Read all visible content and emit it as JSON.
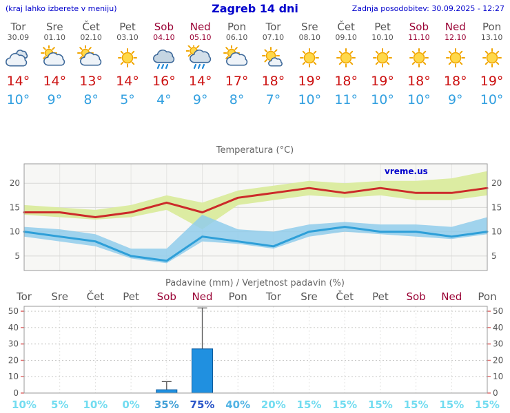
{
  "header": {
    "note": "(kraj lahko izberete v meniju)",
    "title": "Zagreb 14 dni",
    "updated": "Zadnja posodobitev: 30.09.2025 - 12:27"
  },
  "colors": {
    "header_text": "#0000cc",
    "day_normal": "#555555",
    "day_weekend": "#990033",
    "temp_high": "#cc1111",
    "temp_low": "#33a0e0",
    "max_band": "#dceca2",
    "min_band": "#90cdeb",
    "max_line": "#cc2a2a",
    "min_line": "#2e9fd8",
    "bar_fill": "#2090e0"
  },
  "days": [
    {
      "name": "Tor",
      "date": "30.09",
      "weekend": false,
      "icon": "cloudy",
      "high": "14°",
      "low": "10°"
    },
    {
      "name": "Sre",
      "date": "01.10",
      "weekend": false,
      "icon": "partly-cloudy",
      "high": "14°",
      "low": "9°"
    },
    {
      "name": "Čet",
      "date": "02.10",
      "weekend": false,
      "icon": "partly-cloudy",
      "high": "13°",
      "low": "8°"
    },
    {
      "name": "Pet",
      "date": "03.10",
      "weekend": false,
      "icon": "sunny",
      "high": "14°",
      "low": "5°"
    },
    {
      "name": "Sob",
      "date": "04.10",
      "weekend": true,
      "icon": "rain",
      "high": "16°",
      "low": "4°"
    },
    {
      "name": "Ned",
      "date": "05.10",
      "weekend": true,
      "icon": "rain-sun",
      "high": "14°",
      "low": "9°"
    },
    {
      "name": "Pon",
      "date": "06.10",
      "weekend": false,
      "icon": "partly-cloudy",
      "high": "17°",
      "low": "8°"
    },
    {
      "name": "Tor",
      "date": "07.10",
      "weekend": false,
      "icon": "mostly-sunny",
      "high": "18°",
      "low": "7°"
    },
    {
      "name": "Sre",
      "date": "08.10",
      "weekend": false,
      "icon": "sunny",
      "high": "19°",
      "low": "10°"
    },
    {
      "name": "Čet",
      "date": "09.10",
      "weekend": false,
      "icon": "sunny",
      "high": "18°",
      "low": "11°"
    },
    {
      "name": "Pet",
      "date": "10.10",
      "weekend": false,
      "icon": "sunny",
      "high": "19°",
      "low": "10°"
    },
    {
      "name": "Sob",
      "date": "11.10",
      "weekend": true,
      "icon": "sunny",
      "high": "18°",
      "low": "10°"
    },
    {
      "name": "Ned",
      "date": "12.10",
      "weekend": true,
      "icon": "sunny",
      "high": "18°",
      "low": "9°"
    },
    {
      "name": "Pon",
      "date": "13.10",
      "weekend": false,
      "icon": "sunny",
      "high": "19°",
      "low": "10°"
    }
  ],
  "chart_data": [
    {
      "type": "line",
      "title": "Temperatura (°C)",
      "watermark": "vreme.us",
      "x_labels": [
        "Tor",
        "Sre",
        "Čet",
        "Pet",
        "Sob",
        "Ned",
        "Pon",
        "Tor",
        "Sre",
        "Čet",
        "Pet",
        "Sob",
        "Ned",
        "Pon"
      ],
      "ylim": [
        2,
        24
      ],
      "yticks": [
        5,
        10,
        15,
        20
      ],
      "series": [
        {
          "name": "temp-max",
          "color": "#cc2a2a",
          "values": [
            14,
            14,
            13,
            14,
            16,
            14,
            17,
            18,
            19,
            18,
            19,
            18,
            18,
            19
          ]
        },
        {
          "name": "temp-min",
          "color": "#2e9fd8",
          "values": [
            10,
            9,
            8,
            5,
            4,
            9,
            8,
            7,
            10,
            11,
            10,
            10,
            9,
            10
          ]
        }
      ],
      "bands": [
        {
          "name": "max-range",
          "color": "#dceca2",
          "opacity": 1,
          "upper": [
            15.5,
            15,
            14.5,
            15.5,
            17.5,
            16,
            18.5,
            19.5,
            20.5,
            20,
            20.5,
            20.5,
            21,
            22.5
          ],
          "lower": [
            13.5,
            13,
            12.5,
            13,
            14.5,
            10.5,
            15.5,
            16.5,
            17.5,
            17,
            17.5,
            16.5,
            16.5,
            17.5
          ]
        },
        {
          "name": "min-range",
          "color": "#90cdeb",
          "opacity": 0.85,
          "upper": [
            11,
            10.5,
            9.5,
            6.5,
            6.5,
            13.5,
            10.5,
            10,
            11.5,
            12,
            11.5,
            11.5,
            11,
            13
          ],
          "lower": [
            9,
            8,
            7,
            4.5,
            3.5,
            8,
            7.5,
            6.5,
            9,
            10,
            9.5,
            9,
            8.5,
            9.5
          ]
        }
      ]
    },
    {
      "type": "bar",
      "title": "Padavine (mm) / Verjetnost padavin (%)",
      "categories": [
        {
          "label": "Tor",
          "weekend": false
        },
        {
          "label": "Sre",
          "weekend": false
        },
        {
          "label": "Čet",
          "weekend": false
        },
        {
          "label": "Pet",
          "weekend": false
        },
        {
          "label": "Sob",
          "weekend": true
        },
        {
          "label": "Ned",
          "weekend": true
        },
        {
          "label": "Pon",
          "weekend": false
        },
        {
          "label": "Tor",
          "weekend": false
        },
        {
          "label": "Sre",
          "weekend": false
        },
        {
          "label": "Čet",
          "weekend": false
        },
        {
          "label": "Pet",
          "weekend": false
        },
        {
          "label": "Sob",
          "weekend": true
        },
        {
          "label": "Ned",
          "weekend": true
        },
        {
          "label": "Pon",
          "weekend": false
        }
      ],
      "ylim": [
        0,
        53
      ],
      "yticks": [
        0,
        10,
        20,
        30,
        40,
        50
      ],
      "bar_color": "#2090e0",
      "bar_border": "#0e5c9e",
      "values": [
        0,
        0,
        0,
        0,
        2,
        27,
        0,
        0,
        0,
        0,
        0,
        0,
        0,
        0
      ],
      "whiskers": [
        0,
        0,
        0,
        0,
        7,
        52,
        0,
        0,
        0,
        0,
        0,
        0,
        0,
        0
      ],
      "probabilities": [
        {
          "label": "10%",
          "color": "#72dcf0"
        },
        {
          "label": "5%",
          "color": "#72dcf0"
        },
        {
          "label": "10%",
          "color": "#72dcf0"
        },
        {
          "label": "0%",
          "color": "#72dcf0"
        },
        {
          "label": "35%",
          "color": "#3f9fd6"
        },
        {
          "label": "75%",
          "color": "#2a55c8"
        },
        {
          "label": "40%",
          "color": "#52b4e4"
        },
        {
          "label": "20%",
          "color": "#72dcf0"
        },
        {
          "label": "15%",
          "color": "#72dcf0"
        },
        {
          "label": "15%",
          "color": "#72dcf0"
        },
        {
          "label": "15%",
          "color": "#72dcf0"
        },
        {
          "label": "15%",
          "color": "#72dcf0"
        },
        {
          "label": "15%",
          "color": "#72dcf0"
        },
        {
          "label": "15%",
          "color": "#72dcf0"
        }
      ]
    }
  ]
}
